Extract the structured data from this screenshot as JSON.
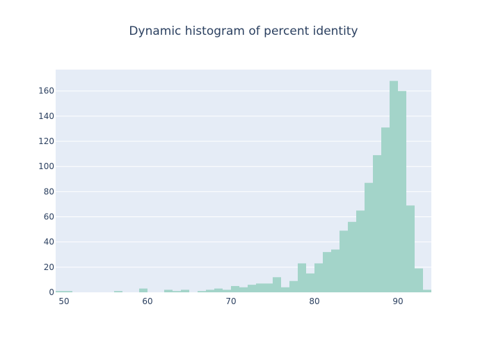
{
  "chart_data": {
    "type": "bar",
    "title": "Dynamic histogram of percent identity",
    "xlabel": "",
    "ylabel": "",
    "xlim": [
      49,
      94
    ],
    "ylim": [
      0,
      177
    ],
    "grid": true,
    "legend": "none",
    "bar_color": "#a3d4c9",
    "plot_bg": "#e5ecf6",
    "grid_color": "#ffffff",
    "text_color": "#2a3f5f",
    "bin_width": 1,
    "x_ticks": [
      50,
      60,
      70,
      80,
      90
    ],
    "x_tick_labels": [
      "50",
      "60",
      "70",
      "80",
      "90"
    ],
    "y_ticks": [
      0,
      20,
      40,
      60,
      80,
      100,
      120,
      140,
      160
    ],
    "y_tick_labels": [
      "0",
      "20",
      "40",
      "60",
      "80",
      "100",
      "120",
      "140",
      "160"
    ],
    "bins": [
      {
        "x0": 49,
        "x1": 50,
        "count": 1
      },
      {
        "x0": 50,
        "x1": 51,
        "count": 1
      },
      {
        "x0": 56,
        "x1": 57,
        "count": 1
      },
      {
        "x0": 59,
        "x1": 60,
        "count": 3
      },
      {
        "x0": 62,
        "x1": 63,
        "count": 2
      },
      {
        "x0": 63,
        "x1": 64,
        "count": 1
      },
      {
        "x0": 64,
        "x1": 65,
        "count": 2
      },
      {
        "x0": 66,
        "x1": 67,
        "count": 1
      },
      {
        "x0": 67,
        "x1": 68,
        "count": 2
      },
      {
        "x0": 68,
        "x1": 69,
        "count": 3
      },
      {
        "x0": 69,
        "x1": 70,
        "count": 2
      },
      {
        "x0": 70,
        "x1": 71,
        "count": 5
      },
      {
        "x0": 71,
        "x1": 72,
        "count": 4
      },
      {
        "x0": 72,
        "x1": 73,
        "count": 6
      },
      {
        "x0": 73,
        "x1": 74,
        "count": 7
      },
      {
        "x0": 74,
        "x1": 75,
        "count": 7
      },
      {
        "x0": 75,
        "x1": 76,
        "count": 12
      },
      {
        "x0": 76,
        "x1": 77,
        "count": 4
      },
      {
        "x0": 77,
        "x1": 78,
        "count": 9
      },
      {
        "x0": 78,
        "x1": 79,
        "count": 23
      },
      {
        "x0": 79,
        "x1": 80,
        "count": 15
      },
      {
        "x0": 80,
        "x1": 81,
        "count": 23
      },
      {
        "x0": 81,
        "x1": 82,
        "count": 32
      },
      {
        "x0": 82,
        "x1": 83,
        "count": 34
      },
      {
        "x0": 83,
        "x1": 84,
        "count": 49
      },
      {
        "x0": 84,
        "x1": 85,
        "count": 56
      },
      {
        "x0": 85,
        "x1": 86,
        "count": 65
      },
      {
        "x0": 86,
        "x1": 87,
        "count": 87
      },
      {
        "x0": 87,
        "x1": 88,
        "count": 109
      },
      {
        "x0": 88,
        "x1": 89,
        "count": 131
      },
      {
        "x0": 89,
        "x1": 90,
        "count": 168
      },
      {
        "x0": 90,
        "x1": 91,
        "count": 160
      },
      {
        "x0": 91,
        "x1": 92,
        "count": 69
      },
      {
        "x0": 92,
        "x1": 93,
        "count": 19
      },
      {
        "x0": 93,
        "x1": 94,
        "count": 2
      }
    ]
  }
}
